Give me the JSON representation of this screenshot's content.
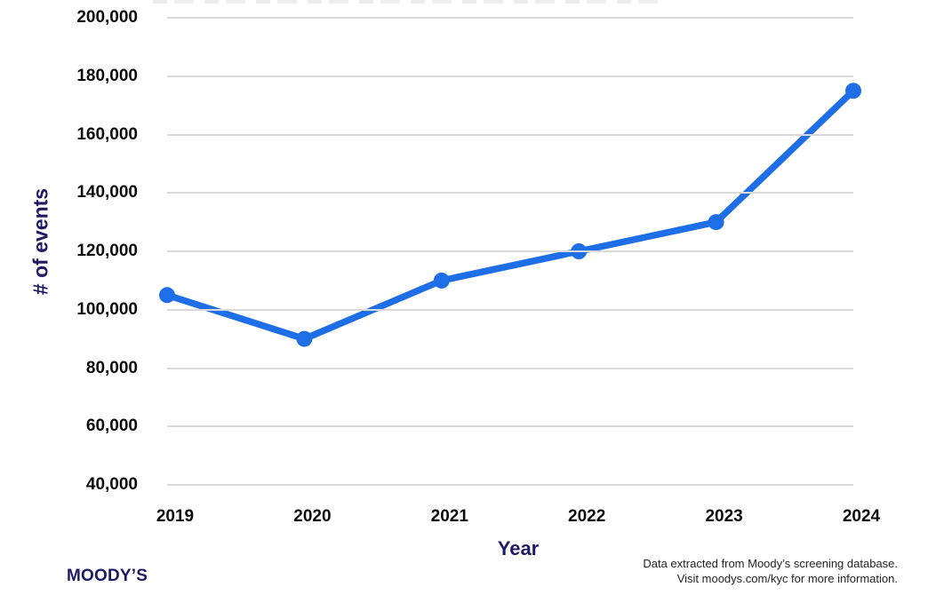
{
  "chart_data": {
    "type": "line",
    "x_labels": [
      "2019",
      "2020",
      "2021",
      "2022",
      "2023",
      "2024"
    ],
    "series": [
      {
        "name": "# of events",
        "values": [
          105000,
          90000,
          110000,
          120000,
          130000,
          175000
        ]
      }
    ],
    "title": "",
    "xlabel": "Year",
    "ylabel": "# of events",
    "ylim": [
      40000,
      200000
    ],
    "y_tick_step": 20000,
    "y_tick_labels": [
      "40,000",
      "60,000",
      "80,000",
      "100,000",
      "120,000",
      "140,000",
      "160,000",
      "180,000",
      "200,000"
    ],
    "grid": "horizontal",
    "legend": "none",
    "line_color": "#1e6ee8",
    "marker": "circle",
    "marker_radius": 9,
    "line_width": 7.5
  },
  "branding": {
    "logo_text": "MOODY’S"
  },
  "footnote": {
    "line1": "Data extracted from Moody’s screening database.",
    "line2": "Visit moodys.com/kyc for more information."
  },
  "colors": {
    "line": "#1e6ee8",
    "navy": "#1f1a66",
    "tick_text": "#0b0b0b",
    "gridline": "#d9d9d9",
    "background": "#ffffff"
  }
}
